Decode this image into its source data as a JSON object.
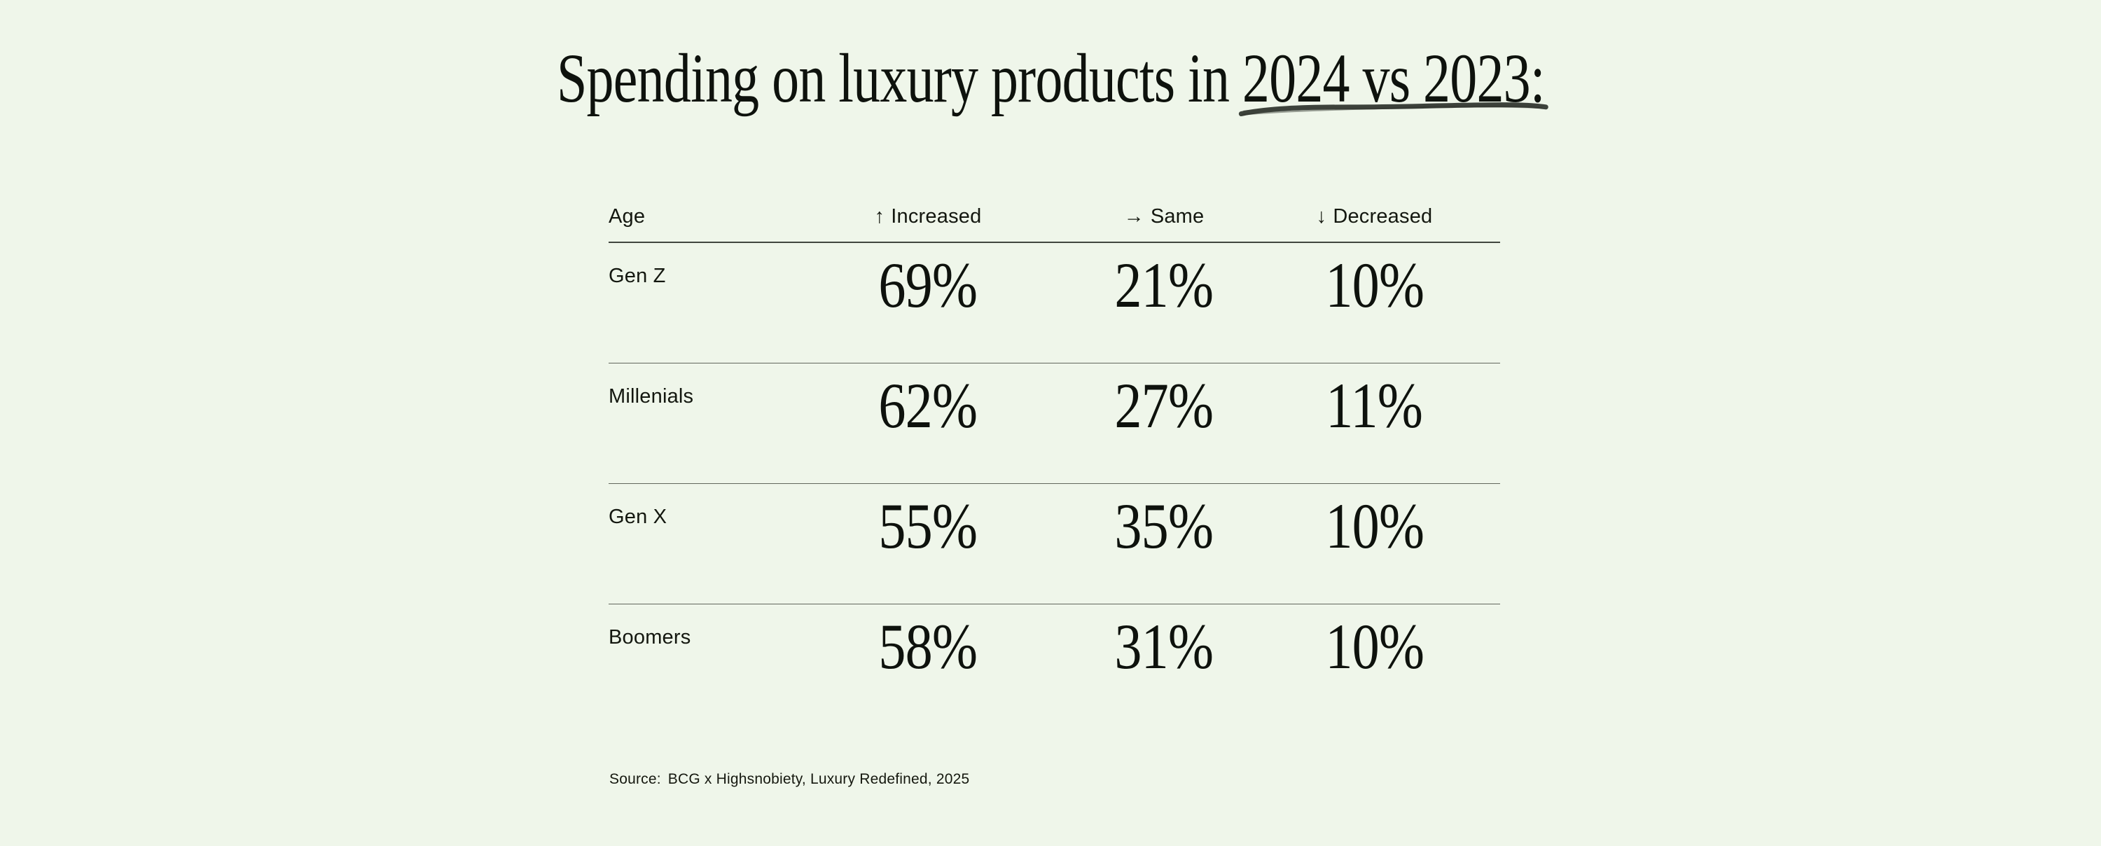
{
  "page": {
    "background_color": "#EFF6EA",
    "text_color": "#10140F",
    "accent_ink_color": "#0E120D"
  },
  "title": {
    "prefix": "Spending on luxury products in ",
    "underlined": "2024 vs 2023:"
  },
  "table": {
    "columns": [
      {
        "key": "age",
        "label": "Age",
        "arrow": ""
      },
      {
        "key": "increased",
        "label": "Increased",
        "arrow": "↑"
      },
      {
        "key": "same",
        "label": "Same",
        "arrow": "→"
      },
      {
        "key": "decreased",
        "label": "Decreased",
        "arrow": "↓"
      }
    ],
    "rows": [
      {
        "age": "Gen Z",
        "increased": "69%",
        "same": "21%",
        "decreased": "10%"
      },
      {
        "age": "Millenials",
        "increased": "62%",
        "same": "27%",
        "decreased": "11%"
      },
      {
        "age": "Gen X",
        "increased": "55%",
        "same": "35%",
        "decreased": "10%"
      },
      {
        "age": "Boomers",
        "increased": "58%",
        "same": "31%",
        "decreased": "10%"
      }
    ]
  },
  "source": {
    "label": "Source:",
    "text": "BCG x Highsnobiety, Luxury Redefined, 2025"
  },
  "chart_data": {
    "type": "table",
    "title": "Spending on luxury products in 2024 vs 2023:",
    "categories": [
      "Gen Z",
      "Millenials",
      "Gen X",
      "Boomers"
    ],
    "series": [
      {
        "name": "Increased",
        "values": [
          69,
          62,
          55,
          58
        ]
      },
      {
        "name": "Same",
        "values": [
          21,
          27,
          35,
          31
        ]
      },
      {
        "name": "Decreased",
        "values": [
          10,
          11,
          10,
          10
        ]
      }
    ],
    "unit": "%",
    "row_header_label": "Age",
    "source": "BCG x Highsnobiety, Luxury Redefined, 2025"
  }
}
